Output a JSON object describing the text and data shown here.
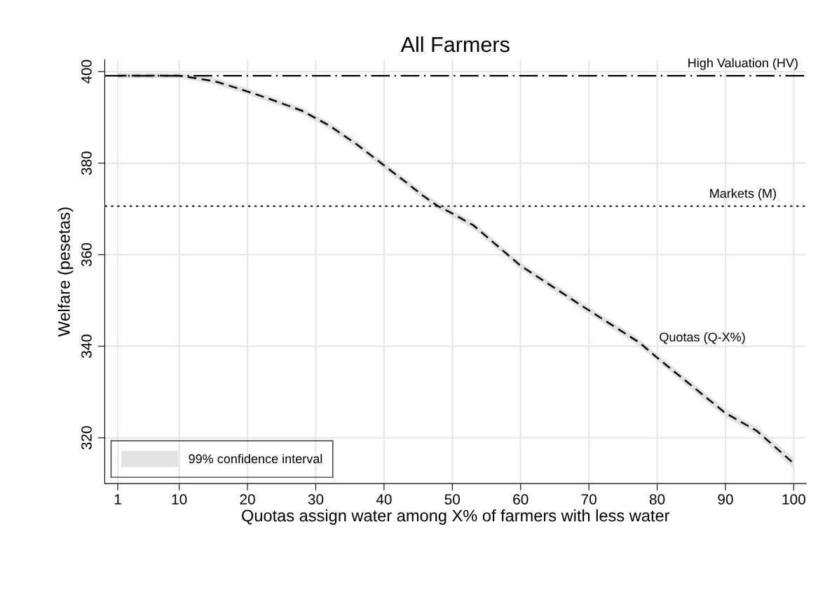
{
  "chart_data": {
    "type": "line",
    "title": "All Farmers",
    "xlabel": "Quotas assign water among X% of farmers with less water",
    "ylabel": "Welfare (pesetas)",
    "x": [
      1,
      5,
      10,
      11.4,
      15.2,
      19.3,
      23.1,
      27.9,
      32,
      36.1,
      40,
      43.5,
      45.6,
      47.8,
      50,
      53.1,
      60,
      69,
      77.4,
      80,
      90,
      94.6,
      100
    ],
    "series": [
      {
        "color": "#000000",
        "line_style": "dashed",
        "values": [
          399.1,
          399.1,
          399.1,
          398.8,
          397.9,
          396.0,
          394.1,
          391.5,
          388.2,
          384.0,
          379.5,
          375.5,
          373.0,
          370.7,
          369.0,
          366.4,
          357.6,
          348.8,
          340.8,
          337.5,
          325.4,
          321.5,
          314.4
        ],
        "lower": [
          398.5,
          398.5,
          398.5,
          398.2,
          397.2,
          395.3,
          393.4,
          390.8,
          387.4,
          383.2,
          378.7,
          374.7,
          372.2,
          369.9,
          368.2,
          365.6,
          356.8,
          348.0,
          340.0,
          336.7,
          324.5,
          320.6,
          313.2
        ],
        "upper": [
          399.7,
          399.7,
          399.7,
          399.4,
          398.6,
          396.7,
          394.8,
          392.2,
          389.0,
          384.8,
          380.3,
          376.3,
          373.8,
          371.5,
          369.8,
          367.2,
          358.4,
          349.6,
          341.6,
          338.3,
          326.3,
          322.4,
          315.6
        ]
      }
    ],
    "ref_lines": [
      {
        "axis": "y",
        "value": 399.1,
        "label": "High Valuation (HV)",
        "color": "#000000",
        "line_style": "dashdot"
      },
      {
        "axis": "y",
        "value": 370.6,
        "label": "Markets (M)",
        "color": "#000000",
        "line_style": "dotted"
      }
    ],
    "annotations": [
      "99% confidence interval",
      {
        "text": "Quotas (Q-X%)",
        "x": 80,
        "y": 337.5
      }
    ],
    "xlim": [
      -0.9,
      101.8
    ],
    "ylim": [
      310,
      402.6
    ],
    "xticks": [
      1,
      10,
      20,
      30,
      40,
      50,
      60,
      70,
      80,
      90,
      100
    ],
    "yticks": [
      320,
      340,
      360,
      380,
      400
    ],
    "grid": true,
    "marker": "none"
  }
}
